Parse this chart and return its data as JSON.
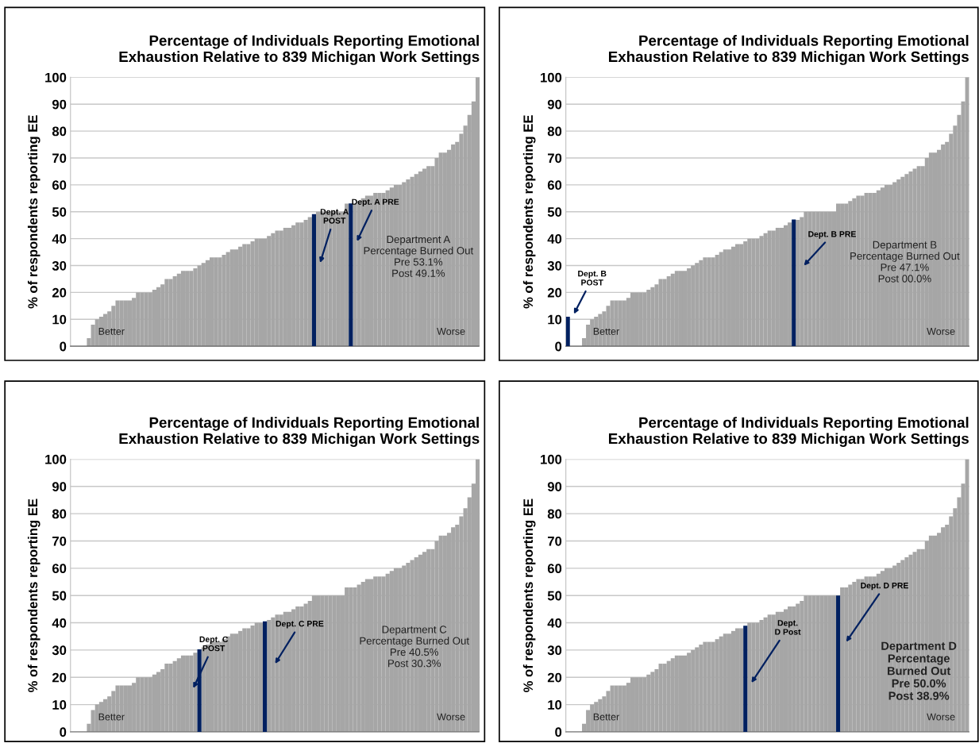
{
  "chart_data": [
    {
      "type": "bar",
      "title": "Percentage of Individuals Reporting Emotional\nExhaustion Relative to 839 Michigan Work Settings",
      "ylabel": "% of respondents reporting EE",
      "categories": [
        null,
        null,
        null,
        null,
        null,
        null,
        null,
        null,
        null,
        null,
        null,
        null,
        null,
        null,
        null,
        null,
        null,
        null,
        null,
        null,
        null,
        null,
        null,
        null,
        null,
        null,
        null,
        null,
        null,
        null,
        null,
        null,
        null,
        null,
        null,
        null,
        null,
        null,
        null,
        null,
        null,
        null,
        null,
        null,
        null,
        null,
        null,
        null,
        null,
        null,
        null,
        null,
        null,
        null,
        null,
        null,
        null,
        null,
        null,
        null,
        null,
        null,
        null,
        null,
        null,
        null,
        null,
        null,
        null,
        null,
        null,
        null,
        null,
        null,
        null,
        null,
        null,
        null,
        null,
        null,
        null,
        null,
        null,
        null,
        null,
        null,
        null,
        null,
        null,
        null,
        null,
        null,
        null,
        null,
        null,
        null,
        null,
        null,
        null,
        null
      ],
      "series": [
        {
          "color": "#a6a6a6",
          "values": [
            0,
            0,
            0,
            0,
            3,
            8,
            10,
            11,
            12,
            13,
            15,
            17,
            17,
            17,
            17,
            18,
            20,
            20,
            20,
            20,
            21,
            22,
            23,
            25,
            25,
            26,
            27,
            28,
            28,
            28,
            29,
            30,
            31,
            32,
            33,
            33,
            33,
            34,
            35,
            36,
            36,
            37,
            38,
            38,
            39,
            40,
            40,
            40,
            41,
            42,
            43,
            43,
            44,
            44,
            45,
            46,
            46,
            47,
            48,
            null,
            50,
            50,
            50,
            50,
            50,
            50,
            50,
            53,
            null,
            53,
            54,
            55,
            56,
            56,
            57,
            57,
            57,
            58,
            59,
            60,
            60,
            61,
            62,
            63,
            64,
            65,
            66,
            67,
            67,
            70,
            72,
            72,
            73,
            75,
            76,
            79,
            82,
            86,
            91,
            100
          ]
        },
        {
          "color": "#002060",
          "values": [
            null,
            null,
            null,
            null,
            null,
            null,
            null,
            null,
            null,
            null,
            null,
            null,
            null,
            null,
            null,
            null,
            null,
            null,
            null,
            null,
            null,
            null,
            null,
            null,
            null,
            null,
            null,
            null,
            null,
            null,
            null,
            null,
            null,
            null,
            null,
            null,
            null,
            null,
            null,
            null,
            null,
            null,
            null,
            null,
            null,
            null,
            null,
            null,
            null,
            null,
            null,
            null,
            null,
            null,
            null,
            null,
            null,
            null,
            null,
            49.1,
            null,
            null,
            null,
            null,
            null,
            null,
            null,
            null,
            53.1,
            null,
            null,
            null,
            null,
            null,
            null,
            null,
            null,
            null,
            null,
            null,
            null,
            null,
            null,
            null,
            null,
            null,
            null,
            null,
            null,
            null,
            null,
            null,
            null,
            null,
            null,
            null,
            null,
            null,
            null,
            null
          ]
        }
      ],
      "ylim": [
        0,
        100
      ],
      "yticks": [
        0,
        10,
        20,
        30,
        40,
        50,
        60,
        70,
        80,
        90,
        100
      ],
      "grid": "y",
      "tick_labels": "y",
      "annotations": [
        "Dept. A\nPOST",
        "Dept. A PRE",
        "Department A\nPercentage Burned Out\nPre 53.1%\nPost 49.1%",
        "Better",
        "Worse"
      ]
    },
    {
      "type": "bar",
      "title": "Percentage of Individuals Reporting Emotional\nExhaustion Relative to 839 Michigan Work Settings",
      "ylabel": "% of respondents reporting EE",
      "categories": [
        null,
        null,
        null,
        null,
        null,
        null,
        null,
        null,
        null,
        null,
        null,
        null,
        null,
        null,
        null,
        null,
        null,
        null,
        null,
        null,
        null,
        null,
        null,
        null,
        null,
        null,
        null,
        null,
        null,
        null,
        null,
        null,
        null,
        null,
        null,
        null,
        null,
        null,
        null,
        null,
        null,
        null,
        null,
        null,
        null,
        null,
        null,
        null,
        null,
        null,
        null,
        null,
        null,
        null,
        null,
        null,
        null,
        null,
        null,
        null,
        null,
        null,
        null,
        null,
        null,
        null,
        null,
        null,
        null,
        null,
        null,
        null,
        null,
        null,
        null,
        null,
        null,
        null,
        null,
        null,
        null,
        null,
        null,
        null,
        null,
        null,
        null,
        null,
        null,
        null,
        null,
        null,
        null,
        null,
        null,
        null,
        null,
        null,
        null,
        null
      ],
      "series": [
        {
          "color": "#a6a6a6",
          "values": [
            null,
            0,
            0,
            0,
            3,
            8,
            10,
            11,
            12,
            13,
            15,
            17,
            17,
            17,
            17,
            18,
            20,
            20,
            20,
            20,
            21,
            22,
            23,
            25,
            25,
            26,
            27,
            28,
            28,
            28,
            29,
            30,
            31,
            32,
            33,
            33,
            33,
            34,
            35,
            36,
            36,
            37,
            38,
            38,
            39,
            40,
            40,
            40,
            41,
            42,
            43,
            43,
            44,
            44,
            45,
            46,
            null,
            47,
            48,
            50,
            50,
            50,
            50,
            50,
            50,
            50,
            50,
            53,
            53,
            53,
            54,
            55,
            56,
            56,
            57,
            57,
            57,
            58,
            59,
            60,
            60,
            61,
            62,
            63,
            64,
            65,
            66,
            67,
            67,
            70,
            72,
            72,
            73,
            75,
            76,
            79,
            82,
            86,
            91,
            100
          ]
        },
        {
          "color": "#002060",
          "values": [
            11,
            null,
            null,
            null,
            null,
            null,
            null,
            null,
            null,
            null,
            null,
            null,
            null,
            null,
            null,
            null,
            null,
            null,
            null,
            null,
            null,
            null,
            null,
            null,
            null,
            null,
            null,
            null,
            null,
            null,
            null,
            null,
            null,
            null,
            null,
            null,
            null,
            null,
            null,
            null,
            null,
            null,
            null,
            null,
            null,
            null,
            null,
            null,
            null,
            null,
            null,
            null,
            null,
            null,
            null,
            null,
            47.1,
            null,
            null,
            null,
            null,
            null,
            null,
            null,
            null,
            null,
            null,
            null,
            null,
            null,
            null,
            null,
            null,
            null,
            null,
            null,
            null,
            null,
            null,
            null,
            null,
            null,
            null,
            null,
            null,
            null,
            null,
            null,
            null,
            null,
            null,
            null,
            null,
            null,
            null,
            null,
            null,
            null,
            null,
            null
          ]
        }
      ],
      "ylim": [
        0,
        100
      ],
      "yticks": [
        0,
        10,
        20,
        30,
        40,
        50,
        60,
        70,
        80,
        90,
        100
      ],
      "grid": "y",
      "tick_labels": "y",
      "annotations": [
        "Dept. B\nPOST",
        "Dept. B PRE",
        "Department B\nPercentage Burned Out\nPre 47.1%\nPost 00.0%",
        "Better",
        "Worse"
      ]
    },
    {
      "type": "bar",
      "title": "Percentage of Individuals Reporting Emotional\nExhaustion Relative to 839 Michigan Work Settings",
      "ylabel": "% of respondents reporting EE",
      "categories": [
        null,
        null,
        null,
        null,
        null,
        null,
        null,
        null,
        null,
        null,
        null,
        null,
        null,
        null,
        null,
        null,
        null,
        null,
        null,
        null,
        null,
        null,
        null,
        null,
        null,
        null,
        null,
        null,
        null,
        null,
        null,
        null,
        null,
        null,
        null,
        null,
        null,
        null,
        null,
        null,
        null,
        null,
        null,
        null,
        null,
        null,
        null,
        null,
        null,
        null,
        null,
        null,
        null,
        null,
        null,
        null,
        null,
        null,
        null,
        null,
        null,
        null,
        null,
        null,
        null,
        null,
        null,
        null,
        null,
        null,
        null,
        null,
        null,
        null,
        null,
        null,
        null,
        null,
        null,
        null,
        null,
        null,
        null,
        null,
        null,
        null,
        null,
        null,
        null,
        null,
        null,
        null,
        null,
        null,
        null,
        null,
        null,
        null,
        null,
        null
      ],
      "series": [
        {
          "color": "#a6a6a6",
          "values": [
            0,
            0,
            0,
            0,
            3,
            8,
            10,
            11,
            12,
            13,
            15,
            17,
            17,
            17,
            17,
            18,
            20,
            20,
            20,
            20,
            21,
            22,
            23,
            25,
            25,
            26,
            27,
            28,
            28,
            28,
            29,
            null,
            31,
            32,
            33,
            33,
            33,
            34,
            35,
            36,
            36,
            37,
            38,
            38,
            39,
            40,
            40,
            null,
            41,
            42,
            43,
            43,
            44,
            44,
            45,
            46,
            46,
            47,
            48,
            50,
            50,
            50,
            50,
            50,
            50,
            50,
            50,
            53,
            53,
            53,
            54,
            55,
            56,
            56,
            57,
            57,
            57,
            58,
            59,
            60,
            60,
            61,
            62,
            63,
            64,
            65,
            66,
            67,
            67,
            70,
            72,
            72,
            73,
            75,
            76,
            79,
            82,
            86,
            91,
            100
          ]
        },
        {
          "color": "#002060",
          "values": [
            null,
            null,
            null,
            null,
            null,
            null,
            null,
            null,
            null,
            null,
            null,
            null,
            null,
            null,
            null,
            null,
            null,
            null,
            null,
            null,
            null,
            null,
            null,
            null,
            null,
            null,
            null,
            null,
            null,
            null,
            null,
            30.3,
            null,
            null,
            null,
            null,
            null,
            null,
            null,
            null,
            null,
            null,
            null,
            null,
            null,
            null,
            null,
            40.5,
            null,
            null,
            null,
            null,
            null,
            null,
            null,
            null,
            null,
            null,
            null,
            null,
            null,
            null,
            null,
            null,
            null,
            null,
            null,
            null,
            null,
            null,
            null,
            null,
            null,
            null,
            null,
            null,
            null,
            null,
            null,
            null,
            null,
            null,
            null,
            null,
            null,
            null,
            null,
            null,
            null,
            null,
            null,
            null,
            null,
            null,
            null,
            null,
            null,
            null,
            null,
            null
          ]
        }
      ],
      "ylim": [
        0,
        100
      ],
      "yticks": [
        0,
        10,
        20,
        30,
        40,
        50,
        60,
        70,
        80,
        90,
        100
      ],
      "grid": "y",
      "tick_labels": "y",
      "annotations": [
        "Dept. C\nPOST",
        "Dept. C PRE",
        "Department C\nPercentage Burned Out\nPre 40.5%\nPost 30.3%",
        "Better",
        "Worse"
      ]
    },
    {
      "type": "bar",
      "title": "Percentage of Individuals Reporting Emotional\nExhaustion Relative to 839 Michigan Work Settings",
      "ylabel": "% of respondents reporting EE",
      "categories": [
        null,
        null,
        null,
        null,
        null,
        null,
        null,
        null,
        null,
        null,
        null,
        null,
        null,
        null,
        null,
        null,
        null,
        null,
        null,
        null,
        null,
        null,
        null,
        null,
        null,
        null,
        null,
        null,
        null,
        null,
        null,
        null,
        null,
        null,
        null,
        null,
        null,
        null,
        null,
        null,
        null,
        null,
        null,
        null,
        null,
        null,
        null,
        null,
        null,
        null,
        null,
        null,
        null,
        null,
        null,
        null,
        null,
        null,
        null,
        null,
        null,
        null,
        null,
        null,
        null,
        null,
        null,
        null,
        null,
        null,
        null,
        null,
        null,
        null,
        null,
        null,
        null,
        null,
        null,
        null,
        null,
        null,
        null,
        null,
        null,
        null,
        null,
        null,
        null,
        null,
        null,
        null,
        null,
        null,
        null,
        null,
        null,
        null,
        null,
        null
      ],
      "series": [
        {
          "color": "#a6a6a6",
          "values": [
            0,
            0,
            0,
            0,
            3,
            8,
            10,
            11,
            12,
            13,
            15,
            17,
            17,
            17,
            17,
            18,
            20,
            20,
            20,
            20,
            21,
            22,
            23,
            25,
            25,
            26,
            27,
            28,
            28,
            28,
            29,
            30,
            31,
            32,
            33,
            33,
            33,
            34,
            35,
            36,
            36,
            37,
            38,
            38,
            null,
            40,
            40,
            40,
            41,
            42,
            43,
            43,
            44,
            44,
            45,
            46,
            46,
            47,
            48,
            50,
            50,
            50,
            50,
            50,
            50,
            50,
            50,
            null,
            53,
            53,
            54,
            55,
            56,
            56,
            57,
            57,
            57,
            58,
            59,
            60,
            60,
            61,
            62,
            63,
            64,
            65,
            66,
            67,
            67,
            70,
            72,
            72,
            73,
            75,
            76,
            79,
            82,
            86,
            91,
            100
          ]
        },
        {
          "color": "#002060",
          "values": [
            null,
            null,
            null,
            null,
            null,
            null,
            null,
            null,
            null,
            null,
            null,
            null,
            null,
            null,
            null,
            null,
            null,
            null,
            null,
            null,
            null,
            null,
            null,
            null,
            null,
            null,
            null,
            null,
            null,
            null,
            null,
            null,
            null,
            null,
            null,
            null,
            null,
            null,
            null,
            null,
            null,
            null,
            null,
            null,
            38.9,
            null,
            null,
            null,
            null,
            null,
            null,
            null,
            null,
            null,
            null,
            null,
            null,
            null,
            null,
            null,
            null,
            null,
            null,
            null,
            null,
            null,
            null,
            50.0,
            null,
            null,
            null,
            null,
            null,
            null,
            null,
            null,
            null,
            null,
            null,
            null,
            null,
            null,
            null,
            null,
            null,
            null,
            null,
            null,
            null,
            null,
            null,
            null,
            null,
            null,
            null,
            null,
            null,
            null,
            null,
            null
          ]
        }
      ],
      "ylim": [
        0,
        100
      ],
      "yticks": [
        0,
        10,
        20,
        30,
        40,
        50,
        60,
        70,
        80,
        90,
        100
      ],
      "grid": "y",
      "tick_labels": "y",
      "annotations": [
        "Dept.\nD Post",
        "Dept. D PRE",
        "Department D\nPercentage\nBurned Out\nPre 50.0%\nPost 38.9%",
        "Better",
        "Worse"
      ]
    }
  ]
}
